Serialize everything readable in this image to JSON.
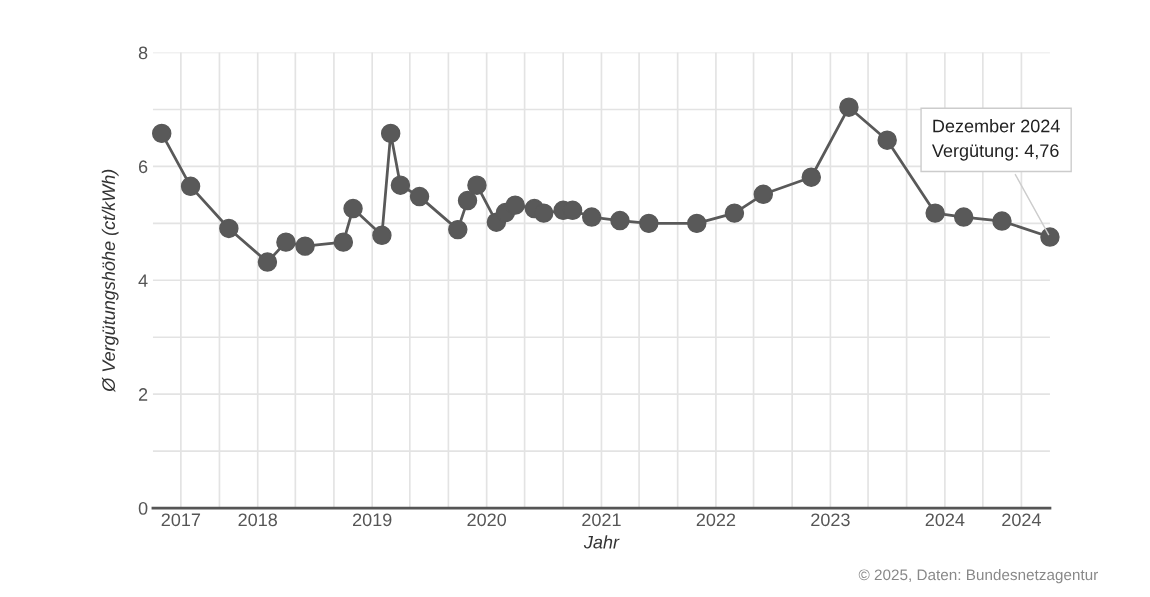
{
  "chart_data": {
    "type": "line",
    "xlabel": "Jahr",
    "ylabel": "Ø Vergütungshöhe (ct/kWh)",
    "x": [
      "2017-03",
      "2017-06",
      "2017-10",
      "2018-02",
      "2018-04",
      "2018-06",
      "2018-10",
      "2018-11",
      "2019-02",
      "2019-03",
      "2019-04",
      "2019-06",
      "2019-10",
      "2019-11",
      "2019-12",
      "2020-02",
      "2020-03",
      "2020-04",
      "2020-06",
      "2020-07",
      "2020-09",
      "2020-10",
      "2020-12",
      "2021-03",
      "2021-06",
      "2021-11",
      "2022-03",
      "2022-06",
      "2022-11",
      "2023-03",
      "2023-07",
      "2023-12",
      "2024-03",
      "2024-07",
      "2024-12"
    ],
    "series": [
      {
        "color": "#595959",
        "values": [
          6.58,
          5.65,
          4.91,
          4.32,
          4.67,
          4.6,
          4.67,
          5.26,
          4.79,
          6.58,
          5.67,
          5.47,
          4.89,
          5.4,
          5.67,
          5.02,
          5.19,
          5.32,
          5.26,
          5.18,
          5.23,
          5.23,
          5.11,
          5.05,
          5.0,
          5.0,
          5.18,
          5.51,
          5.81,
          7.04,
          6.46,
          5.18,
          5.11,
          5.04,
          4.76
        ]
      }
    ],
    "xlim": [
      "2017-02",
      "2024-12"
    ],
    "xticks": [
      {
        "value": "2017-05",
        "label": "2017"
      },
      {
        "value": "2017-09",
        "label": null
      },
      {
        "value": "2018-01",
        "label": "2018"
      },
      {
        "value": "2018-05",
        "label": null
      },
      {
        "value": "2018-09",
        "label": null
      },
      {
        "value": "2019-01",
        "label": "2019"
      },
      {
        "value": "2019-05",
        "label": null
      },
      {
        "value": "2019-09",
        "label": null
      },
      {
        "value": "2020-01",
        "label": "2020"
      },
      {
        "value": "2020-05",
        "label": null
      },
      {
        "value": "2020-09",
        "label": null
      },
      {
        "value": "2021-01",
        "label": "2021"
      },
      {
        "value": "2021-05",
        "label": null
      },
      {
        "value": "2021-09",
        "label": null
      },
      {
        "value": "2022-01",
        "label": "2022"
      },
      {
        "value": "2022-05",
        "label": null
      },
      {
        "value": "2022-09",
        "label": null
      },
      {
        "value": "2023-01",
        "label": "2023"
      },
      {
        "value": "2023-05",
        "label": null
      },
      {
        "value": "2023-09",
        "label": null
      },
      {
        "value": "2024-01",
        "label": "2024"
      },
      {
        "value": "2024-05",
        "label": null
      },
      {
        "value": "2024-09",
        "label": "2024"
      }
    ],
    "ylim": [
      0,
      8
    ],
    "yticks": [
      0,
      {
        "value": 1,
        "label": null
      },
      2,
      {
        "value": 3,
        "label": null
      },
      4,
      {
        "value": 5,
        "label": null
      },
      6,
      {
        "value": 7,
        "label": null
      },
      8
    ],
    "grid": true,
    "marker": "circle",
    "line_style": "solid",
    "annotations": [
      {
        "text": "Dezember 2024\nVergütung: 4,76",
        "x": "2024-12",
        "y": 4.76
      },
      "© 2025, Daten: Bundesnetzagentur"
    ]
  }
}
